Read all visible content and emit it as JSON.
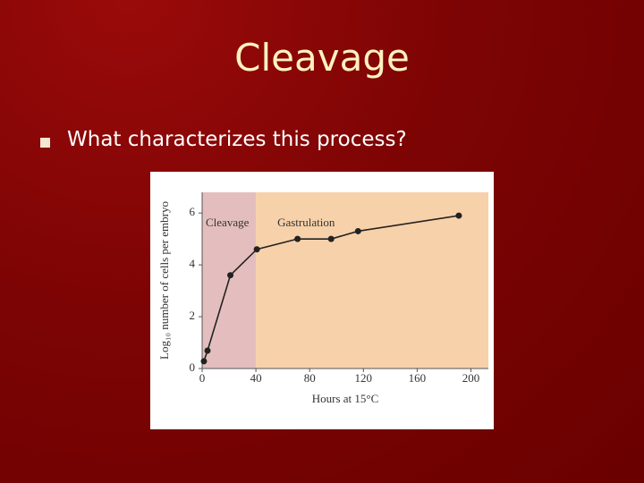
{
  "slide": {
    "title": "Cleavage",
    "bullet": "What characterizes this process?"
  },
  "chart_data": {
    "type": "line",
    "ylabel": "Log₁₀ number of cells per embryo",
    "xlabel": "Hours at 15°C",
    "x": [
      1.3,
      4,
      21,
      40.7,
      71,
      96,
      116,
      191
    ],
    "values": [
      0.28,
      0.69,
      3.6,
      4.6,
      5.0,
      5.0,
      5.3,
      5.9
    ],
    "color": "#222222",
    "regions": [
      {
        "label": "Cleavage",
        "start": 0,
        "end": 40,
        "color": "#dfb3b3"
      },
      {
        "label": "Gastrulation",
        "start": 40,
        "end": 213,
        "color": "#f6c99a"
      }
    ],
    "xlim": [
      0,
      213
    ],
    "ylim": [
      0,
      6.8
    ],
    "xticks": [
      0,
      40,
      80,
      120,
      160,
      200
    ],
    "yticks": [
      0,
      2,
      4,
      6
    ]
  }
}
